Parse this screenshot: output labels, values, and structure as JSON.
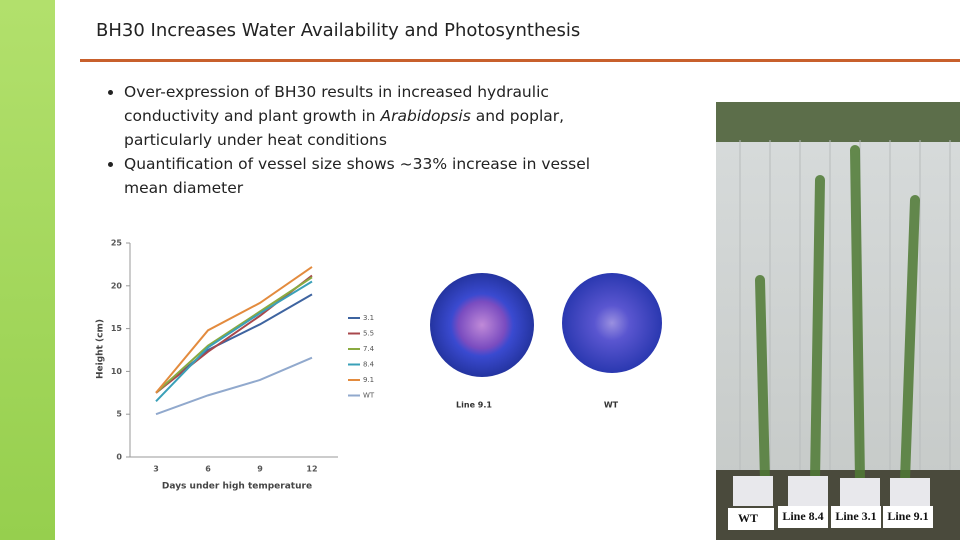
{
  "title": "BH30 Increases Water Availability and Photosynthesis",
  "bullets": [
    [
      "Over-expression of BH30 results in increased hydraulic conductivity and plant growth in ",
      "Arabidopsis",
      " and poplar, particularly under heat conditions"
    ],
    [
      "Quantification of vessel size shows ~33% increase in vessel mean diameter"
    ]
  ],
  "chart_data": {
    "type": "line",
    "x_label": "Days under high temperature",
    "y_label": "Height (cm)",
    "categories": [
      "3",
      "6",
      "9",
      "12"
    ],
    "ylim": [
      0,
      25
    ],
    "yticks": [
      0,
      5,
      10,
      15,
      20,
      25
    ],
    "series": [
      {
        "name": "3.1",
        "color": "#3e64a0",
        "values": [
          7.5,
          12.5,
          15.5,
          19
        ]
      },
      {
        "name": "5.5",
        "color": "#a8484c",
        "values": [
          7.5,
          12.3,
          16.5,
          21.2
        ]
      },
      {
        "name": "7.4",
        "color": "#8aaa40",
        "values": [
          7.5,
          13,
          17,
          21
        ]
      },
      {
        "name": "8.4",
        "color": "#3aa0b8",
        "values": [
          6.5,
          12.8,
          16.8,
          20.5
        ]
      },
      {
        "name": "9.1",
        "color": "#e38b3e",
        "values": [
          7.5,
          14.8,
          18,
          22.2
        ]
      },
      {
        "name": "WT",
        "color": "#91a9cd",
        "values": [
          5,
          7.2,
          9,
          11.6
        ]
      }
    ]
  },
  "cross_sections": [
    "Line 9.1",
    "WT"
  ],
  "photo_labels": [
    "WT",
    "Line 8.4",
    "Line 3.1",
    "Line 9.1"
  ]
}
